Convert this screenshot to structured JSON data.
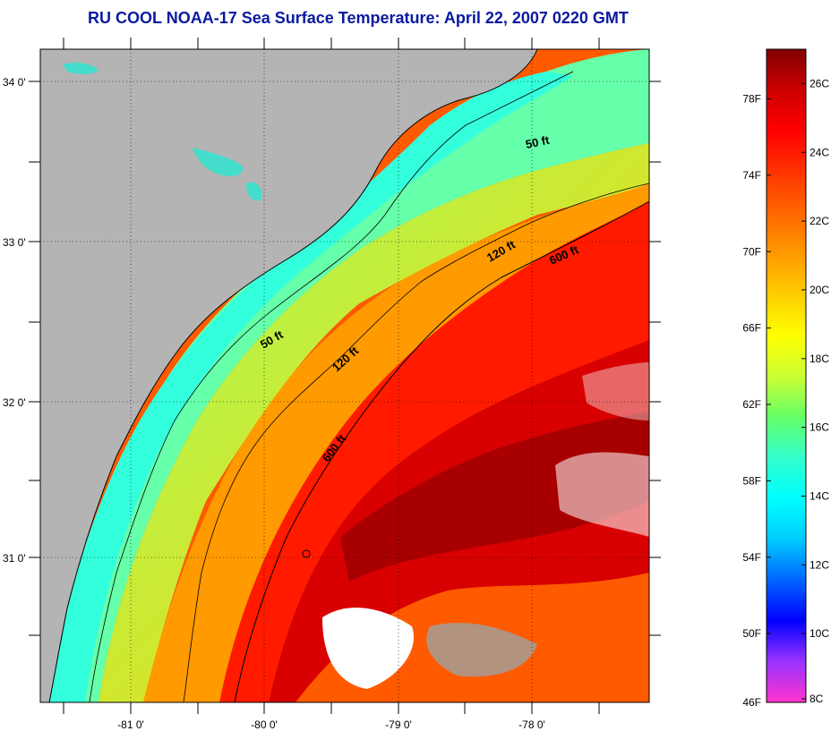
{
  "title": "RU COOL  NOAA-17  Sea Surface Temperature:  April 22, 2007 0220 GMT",
  "map": {
    "lon_labels": [
      "-81 0'",
      "-80 0'",
      "-79 0'",
      "-78 0'"
    ],
    "lat_labels": [
      "34 0'",
      "33 0'",
      "32 0'",
      "31 0'"
    ],
    "contour_labels": [
      "50 ft",
      "120 ft",
      "600 ft",
      "50 ft",
      "120 ft",
      "600 ft"
    ]
  },
  "colorbar": {
    "fahrenheit_labels": [
      "78F",
      "74F",
      "70F",
      "66F",
      "62F",
      "58F",
      "54F",
      "50F",
      "46F"
    ],
    "celsius_labels": [
      "26C",
      "24C",
      "22C",
      "20C",
      "18C",
      "16C",
      "14C",
      "12C",
      "10C",
      "8C"
    ],
    "colors": [
      "#ff33cc",
      "#9933ff",
      "#0000ff",
      "#0066ff",
      "#00ccff",
      "#00ffff",
      "#33ffcc",
      "#66ff66",
      "#ccff33",
      "#ffff00",
      "#ffcc00",
      "#ff9900",
      "#ff6600",
      "#ff3300",
      "#ff0000",
      "#cc0000",
      "#800000"
    ]
  }
}
